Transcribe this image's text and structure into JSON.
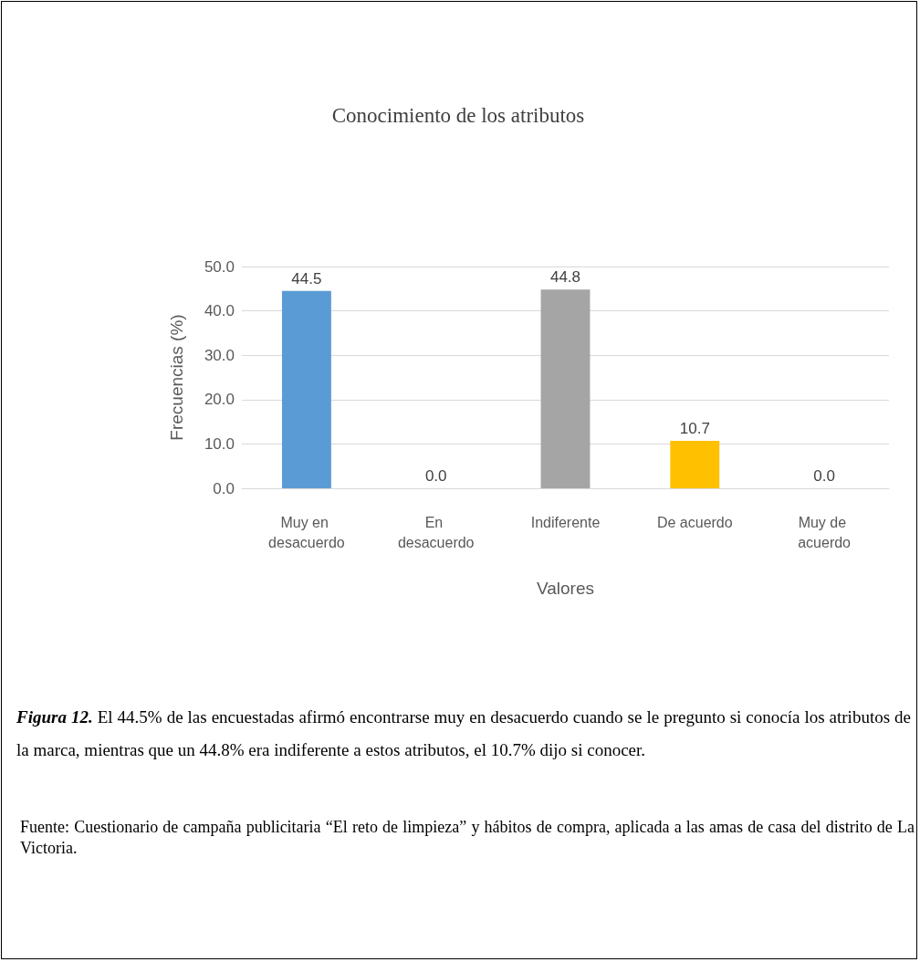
{
  "chart_data": {
    "type": "bar",
    "title": "Conocimiento de los atributos",
    "xlabel": "Valores",
    "ylabel": "Frecuencias (%)",
    "categories": [
      "Muy en desacuerdo",
      "En desacuerdo",
      "Indiferente",
      "De acuerdo",
      "Muy de acuerdo"
    ],
    "values": [
      44.5,
      0.0,
      44.8,
      10.7,
      0.0
    ],
    "colors": [
      "#5b9bd5",
      "#c55a11",
      "#a5a5a5",
      "#ffc000",
      "#264478"
    ],
    "value_labels": [
      "44.5",
      "0.0",
      "44.8",
      "10.7",
      "0.0"
    ],
    "ylim": [
      0,
      50
    ],
    "yticks": [
      {
        "value": 0,
        "label": "0.0"
      },
      {
        "value": 10,
        "label": "10.0"
      },
      {
        "value": 20,
        "label": "20.0"
      },
      {
        "value": 30,
        "label": "30.0"
      },
      {
        "value": 40,
        "label": "40.0"
      },
      {
        "value": 50,
        "label": "50.0"
      }
    ],
    "grid": "y",
    "annotations": [
      "Figura 12.",
      "El 44.5% de las encuestadas afirmó encontrarse muy en desacuerdo cuando se le pregunto si conocía los atributos de la marca, mientras que un 44.8% era indiferente a estos atributos, el 10.7% dijo si conocer.",
      "Fuente: Cuestionario de campaña publicitaria “El reto de limpieza” y hábitos de compra, aplicada a las amas de casa del distrito de La Victoria."
    ]
  }
}
